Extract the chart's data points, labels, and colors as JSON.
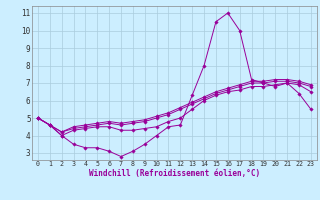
{
  "xlabel": "Windchill (Refroidissement éolien,°C)",
  "bg_color": "#cceeff",
  "line_color": "#990099",
  "xlim": [
    -0.5,
    23.5
  ],
  "ylim": [
    2.6,
    11.4
  ],
  "xticks": [
    0,
    1,
    2,
    3,
    4,
    5,
    6,
    7,
    8,
    9,
    10,
    11,
    12,
    13,
    14,
    15,
    16,
    17,
    18,
    19,
    20,
    21,
    22,
    23
  ],
  "yticks": [
    3,
    4,
    5,
    6,
    7,
    8,
    9,
    10,
    11
  ],
  "grid_color": "#aaccdd",
  "series": [
    [
      5.0,
      4.6,
      4.0,
      3.5,
      3.3,
      3.3,
      3.1,
      2.8,
      3.1,
      3.5,
      4.0,
      4.5,
      4.6,
      6.3,
      8.0,
      10.5,
      11.0,
      10.0,
      7.2,
      7.0,
      6.8,
      7.0,
      6.4,
      5.5
    ],
    [
      5.0,
      4.6,
      4.0,
      4.3,
      4.4,
      4.5,
      4.5,
      4.3,
      4.3,
      4.4,
      4.5,
      4.8,
      5.0,
      5.5,
      6.0,
      6.3,
      6.5,
      6.6,
      6.8,
      6.8,
      6.9,
      7.0,
      6.9,
      6.5
    ],
    [
      5.0,
      4.6,
      4.2,
      4.4,
      4.5,
      4.6,
      4.7,
      4.6,
      4.7,
      4.8,
      5.0,
      5.2,
      5.5,
      5.8,
      6.1,
      6.4,
      6.6,
      6.8,
      7.0,
      7.0,
      7.1,
      7.1,
      7.0,
      6.8
    ],
    [
      5.0,
      4.6,
      4.2,
      4.5,
      4.6,
      4.7,
      4.8,
      4.7,
      4.8,
      4.9,
      5.1,
      5.3,
      5.6,
      5.9,
      6.2,
      6.5,
      6.7,
      6.9,
      7.1,
      7.1,
      7.2,
      7.2,
      7.1,
      6.9
    ]
  ]
}
